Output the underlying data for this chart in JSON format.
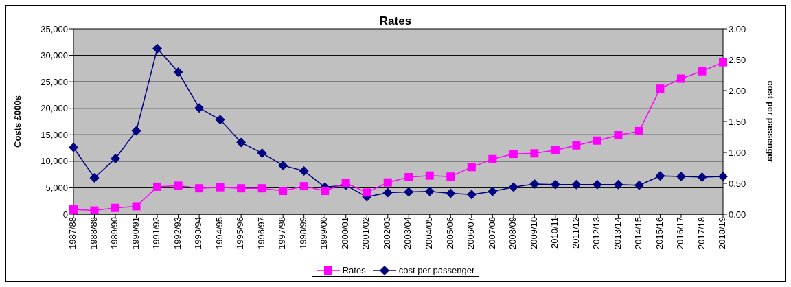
{
  "chart_data": {
    "type": "line",
    "title": "Rates",
    "ylabel": "Costs £000s",
    "y2label": "cost per passenger",
    "categories": [
      "1987/88",
      "1988/89",
      "1989/90",
      "1990/91",
      "1991/92",
      "1992/93",
      "1993/94",
      "1994/95",
      "1995/96",
      "1996/97",
      "1997/98",
      "1998/99",
      "1999/00",
      "2000/01",
      "2001/02",
      "2002/03",
      "2003/04",
      "2004/05",
      "2005/06",
      "2006/07",
      "2007/08",
      "2008/09",
      "2009/10",
      "2010/11",
      "2011/12",
      "2012/13",
      "2013/14",
      "2014/15",
      "2015/16",
      "2016/17",
      "2017/18",
      "2018/19"
    ],
    "series": [
      {
        "name": "Rates",
        "color": "#ff00ff",
        "marker": "square",
        "values": [
          900,
          700,
          1200,
          1500,
          5200,
          5400,
          4900,
          5100,
          4900,
          4900,
          4400,
          5300,
          4400,
          5900,
          4100,
          6000,
          7000,
          7300,
          7100,
          8900,
          10400,
          11400,
          11500,
          12100,
          13000,
          13900,
          14900,
          15700,
          23700,
          25600,
          27000,
          28700
        ]
      },
      {
        "name": "cost per passenger",
        "color": "#000080",
        "marker": "diamond",
        "axis": "y2",
        "values": [
          1.08,
          0.59,
          0.9,
          1.35,
          2.68,
          2.3,
          1.72,
          1.53,
          1.16,
          0.99,
          0.79,
          0.7,
          0.44,
          0.47,
          0.28,
          0.35,
          0.36,
          0.37,
          0.34,
          0.32,
          0.37,
          0.44,
          0.49,
          0.48,
          0.48,
          0.48,
          0.48,
          0.47,
          0.62,
          0.61,
          0.6,
          0.61
        ]
      }
    ],
    "ylim": [
      0,
      35000
    ],
    "yticks": [
      {
        "value": 0,
        "label": "0"
      },
      {
        "value": 5000,
        "label": "5,000"
      },
      {
        "value": 10000,
        "label": "10,000"
      },
      {
        "value": 15000,
        "label": "15,000"
      },
      {
        "value": 20000,
        "label": "20,000"
      },
      {
        "value": 25000,
        "label": "25,000"
      },
      {
        "value": 30000,
        "label": "30,000"
      },
      {
        "value": 35000,
        "label": "35,000"
      }
    ],
    "y2lim": [
      0,
      3
    ],
    "y2ticks": [
      {
        "value": 0,
        "label": "0.00"
      },
      {
        "value": 0.5,
        "label": "0.50"
      },
      {
        "value": 1,
        "label": "1.00"
      },
      {
        "value": 1.5,
        "label": "1.50"
      },
      {
        "value": 2,
        "label": "2.00"
      },
      {
        "value": 2.5,
        "label": "2.50"
      },
      {
        "value": 3,
        "label": "3.00"
      }
    ],
    "grid": "y",
    "legend": "bottom"
  }
}
